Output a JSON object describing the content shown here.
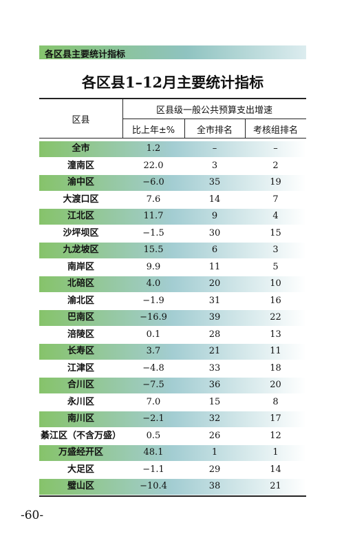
{
  "header": {
    "section": "各区县主要统计指标",
    "title": "各区县1–12月主要统计指标"
  },
  "table": {
    "columns": {
      "region": "区县",
      "group": "区县级一般公共预算支出增速",
      "sub": [
        "比上年±%",
        "全市排名",
        "考核组排名"
      ]
    },
    "rows": [
      [
        "全市",
        "1.2",
        "–",
        "–"
      ],
      [
        "潼南区",
        "22.0",
        "3",
        "2"
      ],
      [
        "渝中区",
        "−6.0",
        "35",
        "19"
      ],
      [
        "大渡口区",
        "7.6",
        "14",
        "7"
      ],
      [
        "江北区",
        "11.7",
        "9",
        "4"
      ],
      [
        "沙坪坝区",
        "−1.5",
        "30",
        "15"
      ],
      [
        "九龙坡区",
        "15.5",
        "6",
        "3"
      ],
      [
        "南岸区",
        "9.9",
        "11",
        "5"
      ],
      [
        "北碚区",
        "4.0",
        "20",
        "10"
      ],
      [
        "渝北区",
        "−1.9",
        "31",
        "16"
      ],
      [
        "巴南区",
        "−16.9",
        "39",
        "22"
      ],
      [
        "涪陵区",
        "0.1",
        "28",
        "13"
      ],
      [
        "长寿区",
        "3.7",
        "21",
        "11"
      ],
      [
        "江津区",
        "−4.8",
        "33",
        "18"
      ],
      [
        "合川区",
        "−7.5",
        "36",
        "20"
      ],
      [
        "永川区",
        "7.0",
        "15",
        "8"
      ],
      [
        "南川区",
        "−2.1",
        "32",
        "17"
      ],
      [
        "綦江区（不含万盛）",
        "0.5",
        "26",
        "12"
      ],
      [
        "万盛经开区",
        "48.1",
        "1",
        "1"
      ],
      [
        "大足区",
        "−1.1",
        "29",
        "14"
      ],
      [
        "璧山区",
        "−10.4",
        "38",
        "21"
      ]
    ]
  },
  "footer": {
    "page": "-60-"
  }
}
